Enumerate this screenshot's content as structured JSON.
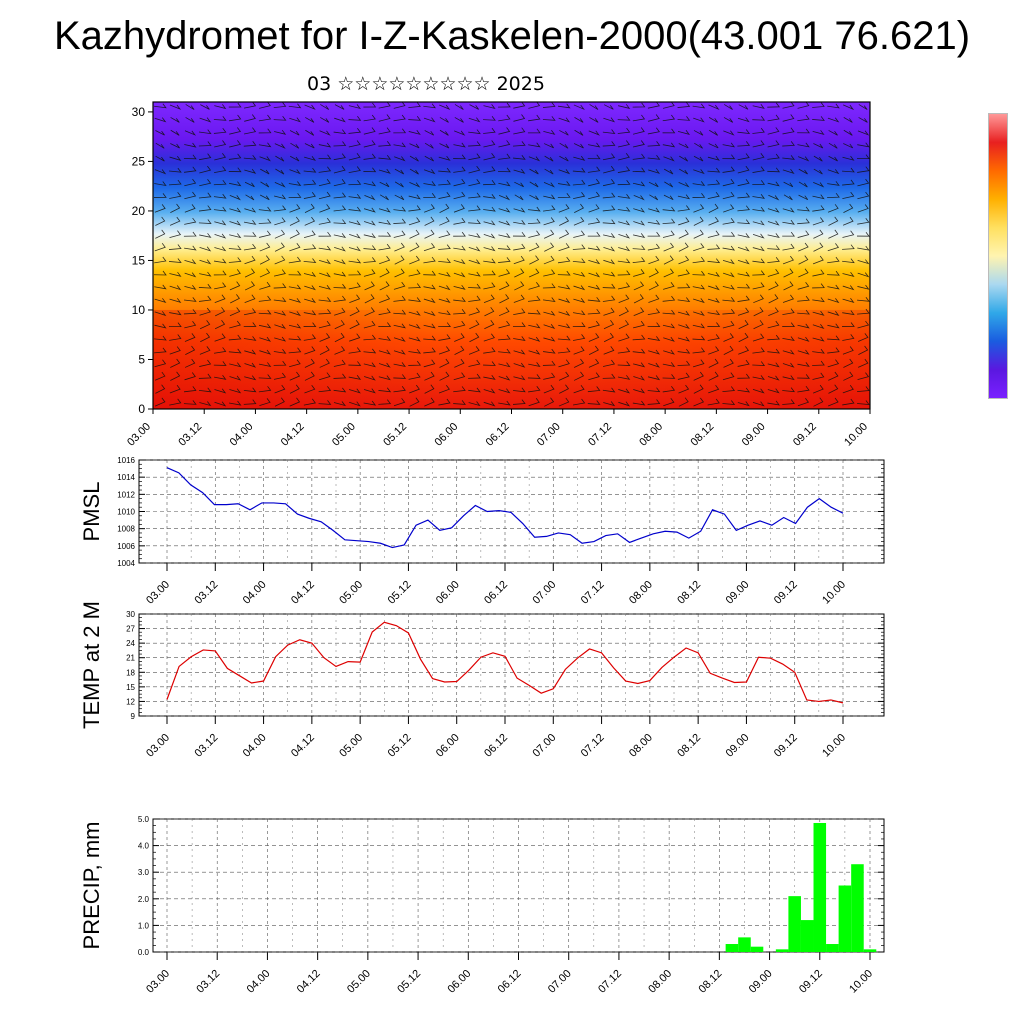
{
  "title": "Kazhydromet for I-Z-Kaskelen-2000(43.001 76.621)",
  "subtitle": "03 ☆☆☆☆☆☆☆☆☆ 2025",
  "time_ticks": [
    "03.00",
    "03.12",
    "04.00",
    "04.12",
    "05.00",
    "05.12",
    "06.00",
    "06.12",
    "07.00",
    "07.12",
    "08.00",
    "08.12",
    "09.00",
    "09.12",
    "10.00"
  ],
  "colorbar_colors": [
    "#ff9999",
    "#e82020",
    "#ff6a00",
    "#ffb000",
    "#ffe060",
    "#fff4b0",
    "#aad8f0",
    "#30a8e8",
    "#1a5ce0",
    "#5a18e0",
    "#7a20ff"
  ],
  "chart_data": [
    {
      "type": "heatmap",
      "name": "wind-temperature-profile",
      "x": "time_ticks",
      "y_ticks": [
        0,
        5,
        10,
        15,
        20,
        25,
        30
      ],
      "ylim": [
        0,
        31
      ]
    },
    {
      "type": "line",
      "ylabel": "PMSL",
      "ylim": [
        1004,
        1016
      ],
      "y_ticks": [
        1004,
        1006,
        1008,
        1010,
        1012,
        1014,
        1016
      ],
      "color": "#0000cc",
      "values": [
        1015.1,
        1014.5,
        1013.1,
        1012.2,
        1010.8,
        1010.8,
        1010.9,
        1010.2,
        1011.0,
        1011.0,
        1010.9,
        1009.7,
        1009.2,
        1008.8,
        1007.8,
        1006.7,
        1006.6,
        1006.5,
        1006.3,
        1005.8,
        1006.1,
        1008.4,
        1009.0,
        1007.8,
        1008.1,
        1009.5,
        1010.7,
        1010.0,
        1010.1,
        1009.9,
        1008.6,
        1007.0,
        1007.1,
        1007.5,
        1007.3,
        1006.3,
        1006.5,
        1007.2,
        1007.4,
        1006.4,
        1006.9,
        1007.4,
        1007.7,
        1007.6,
        1006.9,
        1007.7,
        1010.2,
        1009.7,
        1007.8,
        1008.4,
        1008.9,
        1008.4,
        1009.3,
        1008.6,
        1010.5,
        1011.5,
        1010.5,
        1009.8
      ]
    },
    {
      "type": "line",
      "ylabel": "TEMP at 2 M",
      "ylim": [
        9,
        30
      ],
      "y_ticks": [
        9,
        12,
        15,
        18,
        21,
        24,
        27,
        30
      ],
      "color": "#dd0000",
      "values": [
        12.4,
        19.2,
        21.2,
        22.6,
        22.4,
        18.8,
        17.3,
        15.8,
        16.2,
        21.2,
        23.6,
        24.7,
        24.0,
        21.0,
        19.2,
        20.2,
        20.1,
        26.3,
        28.3,
        27.6,
        26.1,
        20.7,
        16.7,
        16.0,
        16.1,
        18.4,
        21.1,
        22.0,
        21.3,
        16.8,
        15.3,
        13.7,
        14.6,
        18.6,
        20.9,
        22.8,
        22.0,
        18.9,
        16.2,
        15.7,
        16.3,
        19.0,
        21.1,
        23.0,
        22.0,
        17.8,
        16.8,
        15.9,
        16.0,
        21.1,
        20.9,
        19.7,
        18.0,
        12.3,
        12.0,
        12.3,
        11.7
      ]
    },
    {
      "type": "bar",
      "ylabel": "PRECIP, mm",
      "ylim": [
        0,
        5
      ],
      "y_ticks": [
        "0.0",
        "1.0",
        "2.0",
        "3.0",
        "4.0",
        "5.0"
      ],
      "color": "#00ff00",
      "bar_start_index": 45,
      "values": [
        0.3,
        0.55,
        0.2,
        0.0,
        0.1,
        2.1,
        1.2,
        4.85,
        0.3,
        2.5,
        3.3,
        0.1
      ]
    }
  ]
}
